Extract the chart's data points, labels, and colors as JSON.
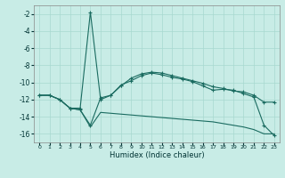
{
  "xlabel": "Humidex (Indice chaleur)",
  "bg_color": "#c8ece6",
  "grid_color": "#a8d8d0",
  "line_color": "#1a6b60",
  "xlim": [
    -0.5,
    23.5
  ],
  "ylim": [
    -17,
    -1
  ],
  "xticks": [
    0,
    1,
    2,
    3,
    4,
    5,
    6,
    7,
    8,
    9,
    10,
    11,
    12,
    13,
    14,
    15,
    16,
    17,
    18,
    19,
    20,
    21,
    22,
    23
  ],
  "yticks": [
    -16,
    -14,
    -12,
    -10,
    -8,
    -6,
    -4,
    -2
  ],
  "line1_x": [
    0,
    1,
    2,
    3,
    4,
    5,
    6,
    7,
    8,
    9,
    10,
    11,
    12,
    13,
    14,
    15,
    16,
    17,
    18,
    19,
    20,
    21,
    22,
    23
  ],
  "line1_y": [
    -11.5,
    -11.5,
    -12.0,
    -13.0,
    -13.0,
    -1.8,
    -12.0,
    -11.5,
    -10.4,
    -9.5,
    -9.0,
    -8.8,
    -8.9,
    -9.2,
    -9.5,
    -9.8,
    -10.1,
    -10.5,
    -10.7,
    -11.0,
    -11.1,
    -11.5,
    -12.3,
    -12.3
  ],
  "line2_x": [
    0,
    1,
    2,
    3,
    4,
    5,
    6,
    7,
    8,
    9,
    10,
    11,
    12,
    13,
    14,
    15,
    16,
    17,
    18,
    19,
    20,
    21,
    22,
    23
  ],
  "line2_y": [
    -11.5,
    -11.5,
    -12.0,
    -13.0,
    -13.2,
    -15.2,
    -13.5,
    -13.6,
    -13.7,
    -13.8,
    -13.9,
    -14.0,
    -14.1,
    -14.2,
    -14.3,
    -14.4,
    -14.5,
    -14.6,
    -14.8,
    -15.0,
    -15.2,
    -15.5,
    -16.0,
    -16.0
  ],
  "line3_x": [
    0,
    1,
    2,
    3,
    4,
    5,
    6,
    7,
    8,
    9,
    10,
    11,
    12,
    13,
    14,
    15,
    16,
    17,
    18,
    19,
    20,
    21,
    22,
    23
  ],
  "line3_y": [
    -11.5,
    -11.5,
    -12.0,
    -13.0,
    -13.2,
    -15.0,
    -11.8,
    -11.5,
    -10.3,
    -9.8,
    -9.2,
    -8.9,
    -9.1,
    -9.4,
    -9.6,
    -9.9,
    -10.4,
    -10.9,
    -10.8,
    -10.9,
    -11.3,
    -11.7,
    -15.0,
    -16.2
  ]
}
